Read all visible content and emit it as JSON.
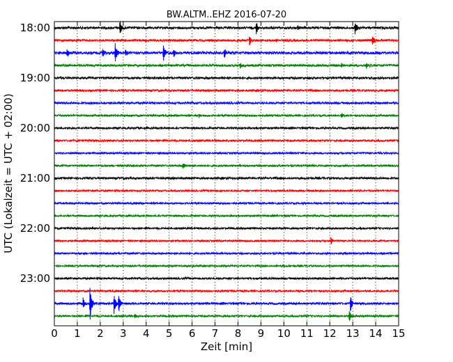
{
  "chart_data": {
    "type": "line",
    "title": "BW.ALTM..EHZ 2016-07-20",
    "xlabel": "Zeit  [min]",
    "ylabel": "UTC (Lokalzeit = UTC + 02:00)",
    "xlim": [
      0,
      15
    ],
    "x_ticks": [
      "0",
      "1",
      "2",
      "3",
      "4",
      "5",
      "6",
      "7",
      "8",
      "9",
      "10",
      "11",
      "12",
      "13",
      "14",
      "15"
    ],
    "y_ticks": [
      {
        "label": "18:00",
        "row": 0
      },
      {
        "label": "19:00",
        "row": 4
      },
      {
        "label": "20:00",
        "row": 8
      },
      {
        "label": "21:00",
        "row": 12
      },
      {
        "label": "22:00",
        "row": 16
      },
      {
        "label": "23:00",
        "row": 20
      }
    ],
    "grid": "vertical dotted at each minute",
    "row_colors": [
      "#000000",
      "#ff0000",
      "#0000ff",
      "#008000"
    ],
    "rows_count": 24,
    "row_minutes": 15,
    "traces": [
      {
        "start": "18:00",
        "color": "#000000",
        "noise": 1.6,
        "events": [
          {
            "t": 2.85,
            "amp": 10
          },
          {
            "t": 8.8,
            "amp": 10
          },
          {
            "t": 10.6,
            "amp": 4
          },
          {
            "t": 13.1,
            "amp": 11
          }
        ]
      },
      {
        "start": "18:15",
        "color": "#ff0000",
        "noise": 1.5,
        "events": [
          {
            "t": 8.5,
            "amp": 9
          },
          {
            "t": 13.85,
            "amp": 9
          }
        ]
      },
      {
        "start": "18:30",
        "color": "#0000ff",
        "noise": 1.8,
        "events": [
          {
            "t": 0.55,
            "amp": 7
          },
          {
            "t": 2.1,
            "amp": 6
          },
          {
            "t": 2.65,
            "amp": 13
          },
          {
            "t": 3.1,
            "amp": 5
          },
          {
            "t": 4.75,
            "amp": 13
          },
          {
            "t": 5.2,
            "amp": 6
          },
          {
            "t": 7.4,
            "amp": 8
          }
        ]
      },
      {
        "start": "18:45",
        "color": "#008000",
        "noise": 1.5,
        "events": [
          {
            "t": 8.1,
            "amp": 6
          },
          {
            "t": 12.5,
            "amp": 4
          },
          {
            "t": 13.6,
            "amp": 5
          }
        ]
      },
      {
        "start": "19:00",
        "color": "#000000",
        "noise": 1.5,
        "events": []
      },
      {
        "start": "19:15",
        "color": "#ff0000",
        "noise": 1.4,
        "events": []
      },
      {
        "start": "19:30",
        "color": "#0000ff",
        "noise": 1.4,
        "events": []
      },
      {
        "start": "19:45",
        "color": "#008000",
        "noise": 1.3,
        "events": [
          {
            "t": 6.3,
            "amp": 3
          },
          {
            "t": 12.5,
            "amp": 4
          }
        ]
      },
      {
        "start": "20:00",
        "color": "#000000",
        "noise": 1.3,
        "events": []
      },
      {
        "start": "20:15",
        "color": "#ff0000",
        "noise": 1.3,
        "events": []
      },
      {
        "start": "20:30",
        "color": "#0000ff",
        "noise": 1.2,
        "events": []
      },
      {
        "start": "20:45",
        "color": "#008000",
        "noise": 1.3,
        "events": [
          {
            "t": 5.6,
            "amp": 6
          }
        ]
      },
      {
        "start": "21:00",
        "color": "#000000",
        "noise": 1.4,
        "events": []
      },
      {
        "start": "21:15",
        "color": "#ff0000",
        "noise": 1.2,
        "events": []
      },
      {
        "start": "21:30",
        "color": "#0000ff",
        "noise": 1.2,
        "events": []
      },
      {
        "start": "21:45",
        "color": "#008000",
        "noise": 1.2,
        "events": []
      },
      {
        "start": "22:00",
        "color": "#000000",
        "noise": 1.2,
        "events": []
      },
      {
        "start": "22:15",
        "color": "#ff0000",
        "noise": 1.2,
        "events": [
          {
            "t": 12.05,
            "amp": 7
          }
        ]
      },
      {
        "start": "22:30",
        "color": "#0000ff",
        "noise": 1.2,
        "events": []
      },
      {
        "start": "22:45",
        "color": "#008000",
        "noise": 1.2,
        "events": []
      },
      {
        "start": "23:00",
        "color": "#000000",
        "noise": 1.3,
        "events": []
      },
      {
        "start": "23:15",
        "color": "#ff0000",
        "noise": 1.3,
        "events": []
      },
      {
        "start": "23:30",
        "color": "#0000ff",
        "noise": 1.4,
        "events": [
          {
            "t": 1.25,
            "amp": 8
          },
          {
            "t": 1.55,
            "amp": 28
          },
          {
            "t": 2.6,
            "amp": 18
          },
          {
            "t": 2.8,
            "amp": 14
          },
          {
            "t": 12.9,
            "amp": 12
          }
        ]
      },
      {
        "start": "23:45",
        "color": "#008000",
        "noise": 1.3,
        "events": [
          {
            "t": 3.5,
            "amp": 4
          },
          {
            "t": 12.85,
            "amp": 10
          }
        ]
      }
    ]
  }
}
